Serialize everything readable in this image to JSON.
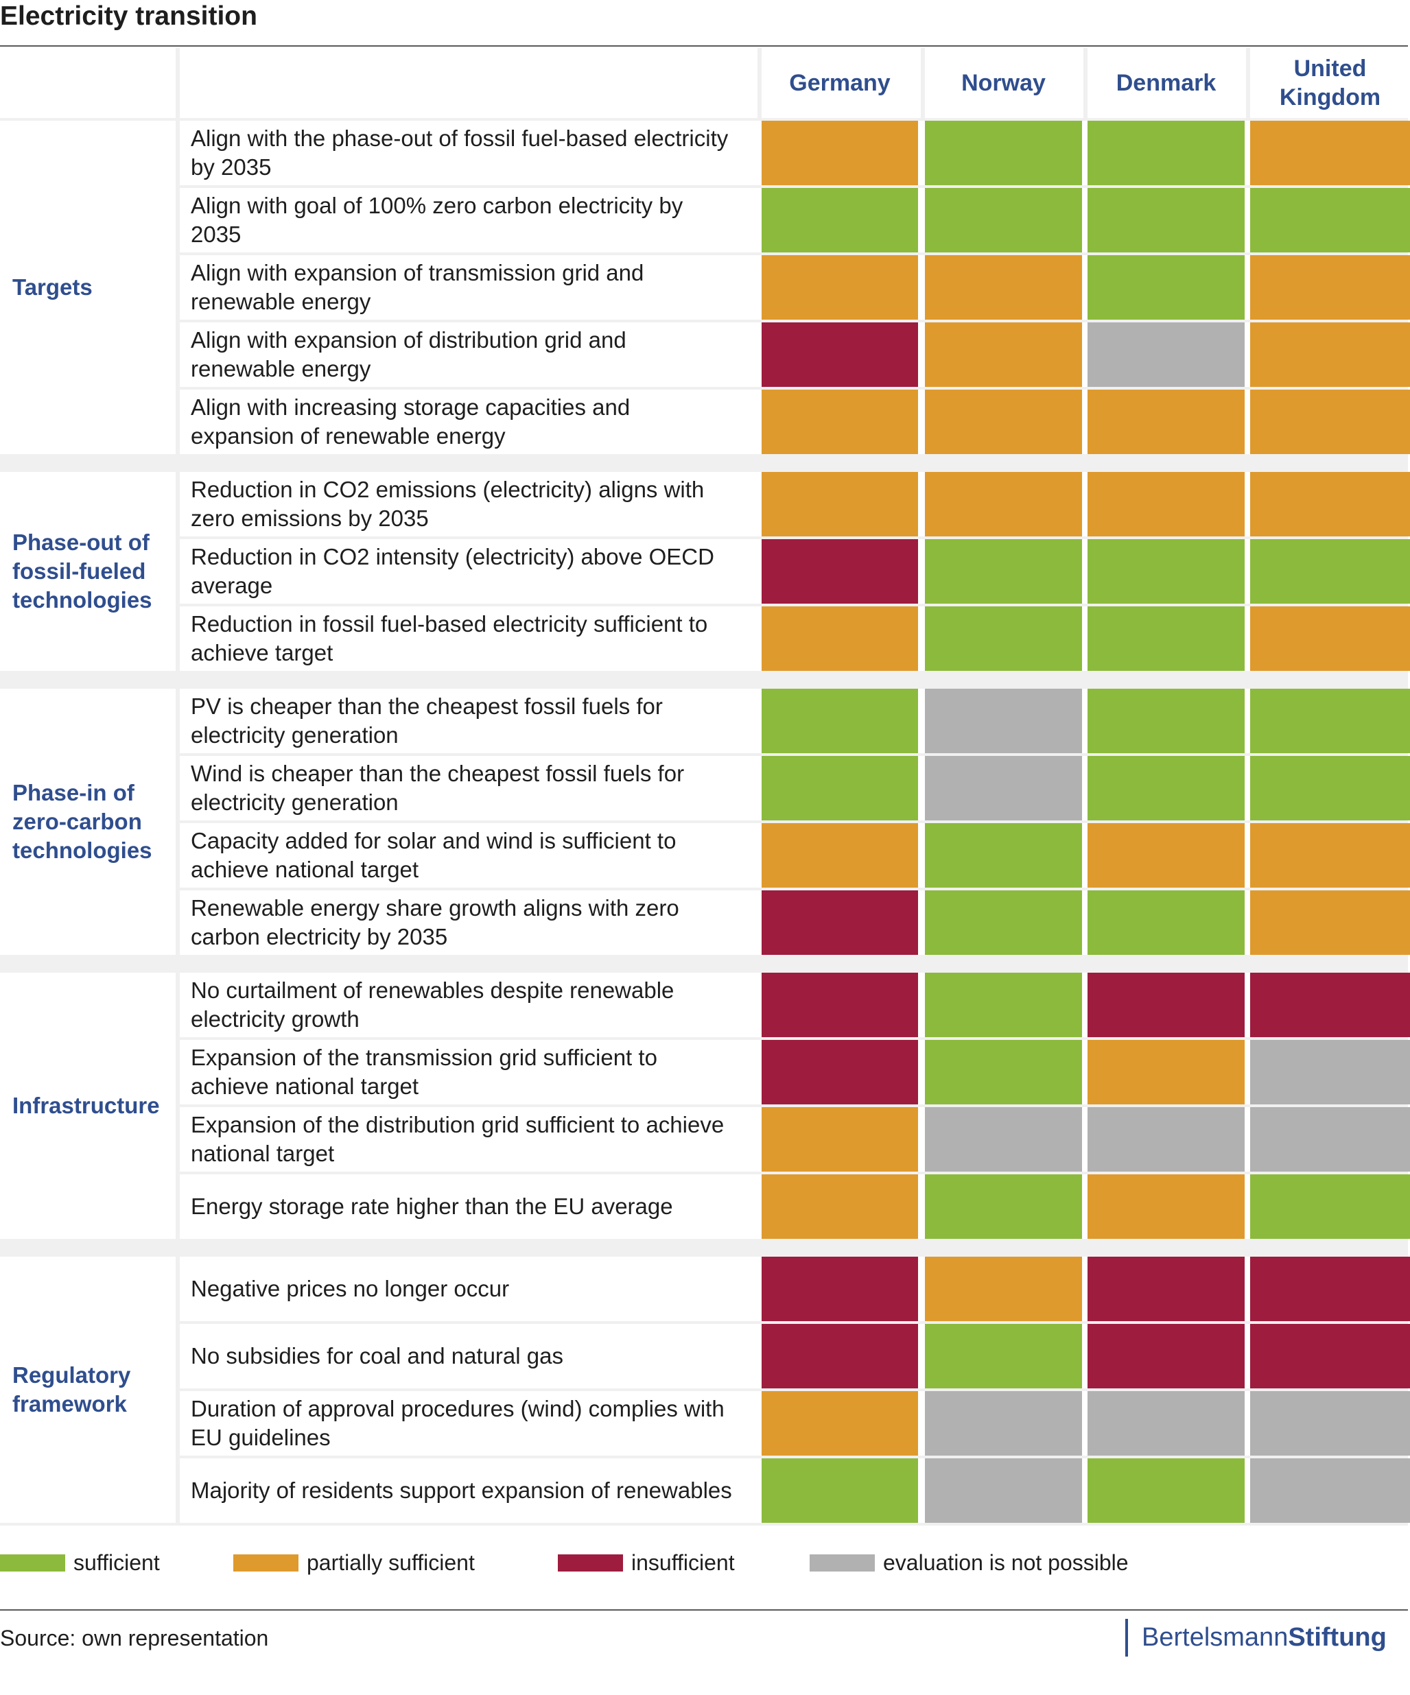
{
  "title": "Electricity transition",
  "colors": {
    "sufficient": "#8cba3c",
    "partially_sufficient": "#df9a2d",
    "insufficient": "#9e1c3e",
    "not_possible": "#b1b1b1",
    "separator": "#f0f0f0",
    "header_text": "#2f4e8e"
  },
  "chart_data": {
    "type": "table",
    "title": "Electricity transition",
    "columns": [
      "Germany",
      "Norway",
      "Denmark",
      "United Kingdom"
    ],
    "groups": [
      {
        "name": "Targets",
        "rows": [
          {
            "label": "Align with the phase-out of fossil fuel-based electricity by 2035",
            "ratings": [
              "partially_sufficient",
              "sufficient",
              "sufficient",
              "partially_sufficient"
            ]
          },
          {
            "label": "Align with goal of 100% zero carbon electricity by 2035",
            "ratings": [
              "sufficient",
              "sufficient",
              "sufficient",
              "sufficient"
            ]
          },
          {
            "label": "Align with expansion of transmission grid and renewable energy",
            "ratings": [
              "partially_sufficient",
              "partially_sufficient",
              "sufficient",
              "partially_sufficient"
            ]
          },
          {
            "label": "Align with expansion of distribution grid and renewable energy",
            "ratings": [
              "insufficient",
              "partially_sufficient",
              "not_possible",
              "partially_sufficient"
            ]
          },
          {
            "label": "Align with increasing storage capacities and expansion of renewable energy",
            "ratings": [
              "partially_sufficient",
              "partially_sufficient",
              "partially_sufficient",
              "partially_sufficient"
            ]
          }
        ]
      },
      {
        "name": "Phase-out of\nfossil-fueled\ntechnologies",
        "rows": [
          {
            "label": "Reduction in CO2 emissions (electricity) aligns with zero emissions by 2035",
            "ratings": [
              "partially_sufficient",
              "partially_sufficient",
              "partially_sufficient",
              "partially_sufficient"
            ]
          },
          {
            "label": "Reduction in CO2 intensity (electricity) above OECD average",
            "ratings": [
              "insufficient",
              "sufficient",
              "sufficient",
              "sufficient"
            ]
          },
          {
            "label": "Reduction in fossil fuel-based electricity sufficient to achieve target",
            "ratings": [
              "partially_sufficient",
              "sufficient",
              "sufficient",
              "partially_sufficient"
            ]
          }
        ]
      },
      {
        "name": "Phase-in of\nzero-carbon\ntechnologies",
        "rows": [
          {
            "label": "PV is cheaper than the cheapest fossil fuels for electricity generation",
            "ratings": [
              "sufficient",
              "not_possible",
              "sufficient",
              "sufficient"
            ]
          },
          {
            "label": "Wind is cheaper than the cheapest fossil fuels for electricity generation",
            "ratings": [
              "sufficient",
              "not_possible",
              "sufficient",
              "sufficient"
            ]
          },
          {
            "label": "Capacity added for solar and wind is sufficient to achieve national target",
            "ratings": [
              "partially_sufficient",
              "sufficient",
              "partially_sufficient",
              "partially_sufficient"
            ]
          },
          {
            "label": "Renewable energy share growth aligns with zero carbon electricity by 2035",
            "ratings": [
              "insufficient",
              "sufficient",
              "sufficient",
              "partially_sufficient"
            ]
          }
        ]
      },
      {
        "name": "Infrastructure",
        "rows": [
          {
            "label": "No curtailment of renewables despite renewable electricity growth",
            "ratings": [
              "insufficient",
              "sufficient",
              "insufficient",
              "insufficient"
            ]
          },
          {
            "label": "Expansion of the transmission grid sufficient to achieve national target",
            "ratings": [
              "insufficient",
              "sufficient",
              "partially_sufficient",
              "not_possible"
            ]
          },
          {
            "label": "Expansion of the distribution grid sufficient to achieve national target",
            "ratings": [
              "partially_sufficient",
              "not_possible",
              "not_possible",
              "not_possible"
            ]
          },
          {
            "label": "Energy storage rate higher than the EU average",
            "ratings": [
              "partially_sufficient",
              "sufficient",
              "partially_sufficient",
              "sufficient"
            ]
          }
        ]
      },
      {
        "name": "Regulatory\nframework",
        "rows": [
          {
            "label": "Negative prices no longer occur",
            "ratings": [
              "insufficient",
              "partially_sufficient",
              "insufficient",
              "insufficient"
            ]
          },
          {
            "label": "No subsidies for coal and natural gas",
            "ratings": [
              "insufficient",
              "sufficient",
              "insufficient",
              "insufficient"
            ]
          },
          {
            "label": "Duration of approval procedures (wind) complies with EU guidelines",
            "ratings": [
              "partially_sufficient",
              "not_possible",
              "not_possible",
              "not_possible"
            ]
          },
          {
            "label": "Majority of residents support expansion of renewables",
            "ratings": [
              "sufficient",
              "not_possible",
              "sufficient",
              "not_possible"
            ]
          }
        ]
      }
    ]
  },
  "legend": [
    {
      "key": "sufficient",
      "label": "sufficient"
    },
    {
      "key": "partially_sufficient",
      "label": "partially sufficient"
    },
    {
      "key": "insufficient",
      "label": "insufficient"
    },
    {
      "key": "not_possible",
      "label": "evaluation is not possible"
    }
  ],
  "source": "Source: own representation",
  "brand": {
    "part1": "Bertelsmann",
    "part2": "Stiftung"
  }
}
